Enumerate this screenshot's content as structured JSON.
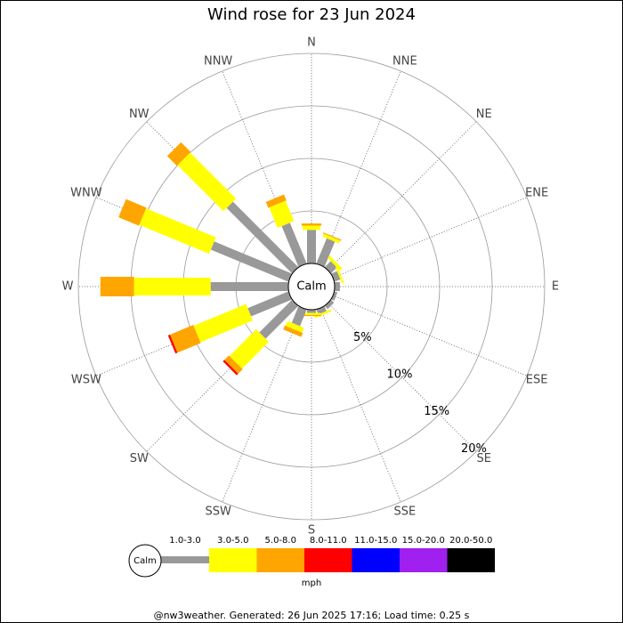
{
  "chart_data": {
    "type": "windrose",
    "title": "Wind rose for 23 Jun 2024",
    "categories": [
      "N",
      "NNE",
      "NE",
      "ENE",
      "E",
      "ESE",
      "SE",
      "SSE",
      "S",
      "SSW",
      "SW",
      "WSW",
      "W",
      "WNW",
      "NW",
      "NNW"
    ],
    "calm_label": "Calm",
    "rlim": [
      0,
      20
    ],
    "rticks": [
      {
        "value": 5,
        "label": "5%"
      },
      {
        "value": 10,
        "label": "10%"
      },
      {
        "value": 15,
        "label": "15%"
      },
      {
        "value": 20,
        "label": "20%"
      }
    ],
    "series": [
      {
        "name": "1.0-3.0",
        "color": "#999999",
        "values": [
          3.2,
          2.6,
          0.8,
          0.6,
          0.5,
          0.3,
          0.4,
          0.5,
          0.3,
          1.7,
          4.4,
          4.2,
          7.4,
          8.0,
          8.8,
          4.2
        ]
      },
      {
        "name": "3.0-5.0",
        "color": "#ffff00",
        "values": [
          0.4,
          0.3,
          0.3,
          0.2,
          0,
          0,
          0,
          0.2,
          0.2,
          0.5,
          3.6,
          5.4,
          7.3,
          7.2,
          6.2,
          2.1
        ]
      },
      {
        "name": "5.0-8.0",
        "color": "#ffa500",
        "values": [
          0.2,
          0.1,
          0,
          0,
          0,
          0,
          0,
          0,
          0.1,
          0.4,
          0.6,
          2.4,
          3.2,
          2.1,
          1.3,
          0.6
        ]
      },
      {
        "name": "8.0-11.0",
        "color": "#ff0000",
        "values": [
          0,
          0,
          0,
          0,
          0,
          0,
          0,
          0,
          0,
          0,
          0.2,
          0.2,
          0,
          0,
          0,
          0
        ]
      },
      {
        "name": "11.0-15.0",
        "color": "#0000ff",
        "values": [
          0,
          0,
          0,
          0,
          0,
          0,
          0,
          0,
          0,
          0,
          0,
          0,
          0,
          0,
          0,
          0
        ]
      },
      {
        "name": "15.0-20.0",
        "color": "#a020f0",
        "values": [
          0,
          0,
          0,
          0,
          0,
          0,
          0,
          0,
          0,
          0,
          0,
          0,
          0,
          0,
          0,
          0
        ]
      },
      {
        "name": "20.0-50.0",
        "color": "#000000",
        "values": [
          0,
          0,
          0,
          0,
          0,
          0,
          0,
          0,
          0,
          0,
          0,
          0,
          0,
          0,
          0,
          0
        ]
      }
    ],
    "unit": "mph",
    "footer": "@nw3weather. Generated: 26 Jun 2025 17:16; Load time: 0.25 s"
  }
}
